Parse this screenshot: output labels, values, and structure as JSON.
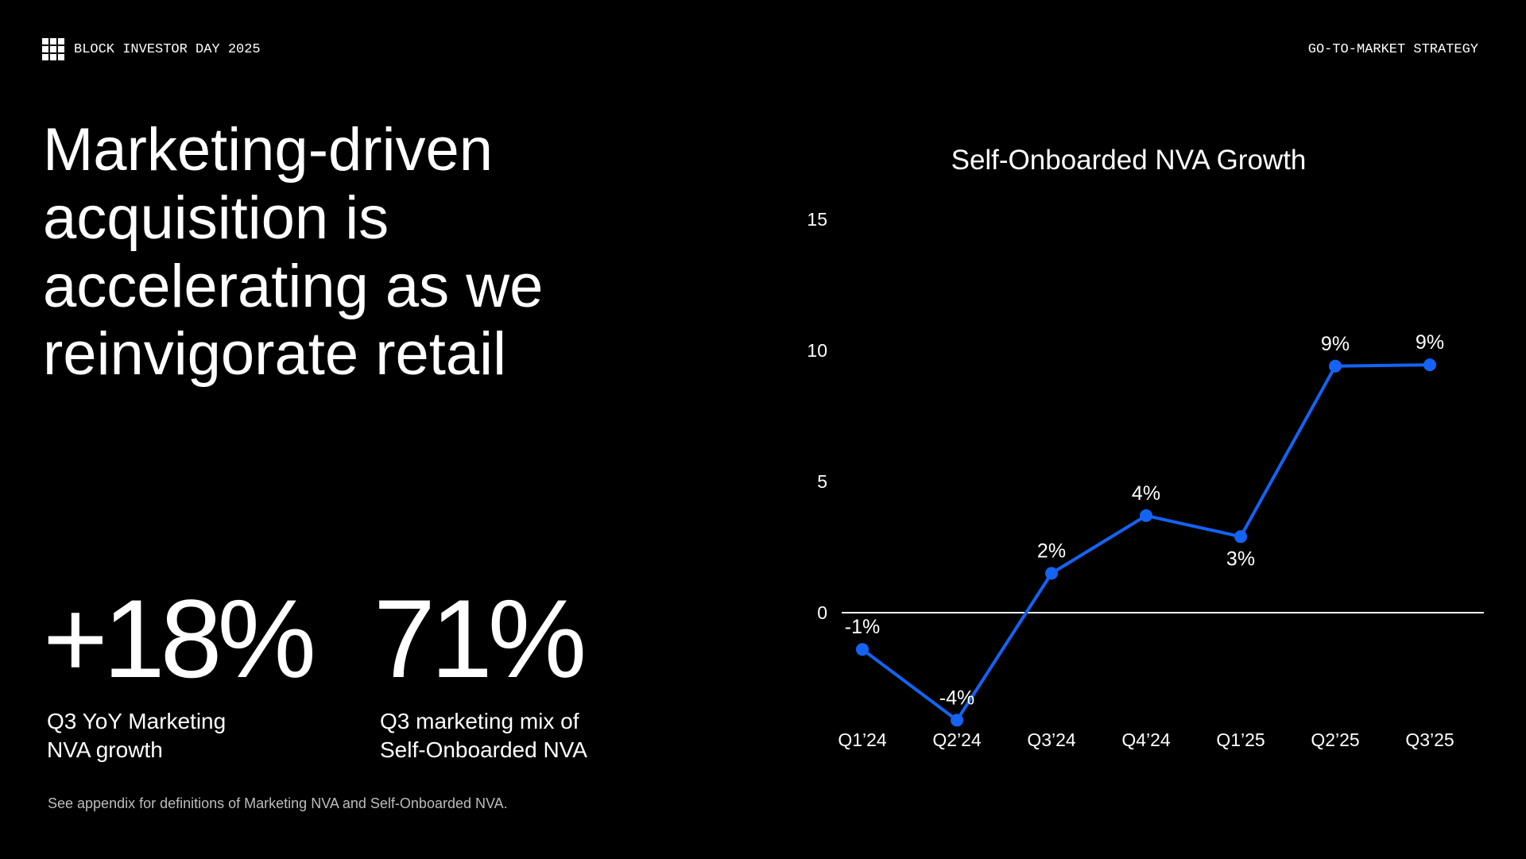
{
  "header": {
    "left": "BLOCK INVESTOR DAY 2025",
    "right": "GO-TO-MARKET STRATEGY"
  },
  "headline": [
    "Marketing-driven",
    "acquisition is",
    "accelerating as we",
    "reinvigorate retail"
  ],
  "stats": [
    {
      "value": "+18%",
      "label": [
        "Q3 YoY Marketing",
        "NVA growth"
      ]
    },
    {
      "value": "71%",
      "label": [
        "Q3 marketing mix of",
        "Self-Onboarded NVA"
      ]
    }
  ],
  "footnote": "See appendix for definitions of Marketing NVA and Self-Onboarded NVA.",
  "chart_data": {
    "type": "line",
    "title": "Self-Onboarded NVA Growth",
    "categories": [
      "Q1’24",
      "Q2’24",
      "Q3’24",
      "Q4’24",
      "Q1’25",
      "Q2’25",
      "Q3’25"
    ],
    "values": [
      -1.4,
      -4.1,
      1.5,
      3.7,
      2.9,
      9.4,
      9.45
    ],
    "value_labels": [
      "-1%",
      "-4%",
      "2%",
      "4%",
      "3%",
      "9%",
      "9%"
    ],
    "color": "#1463f3",
    "ylim": [
      -5,
      15
    ],
    "yticks": [
      0,
      5,
      10,
      15
    ],
    "grid": false
  }
}
